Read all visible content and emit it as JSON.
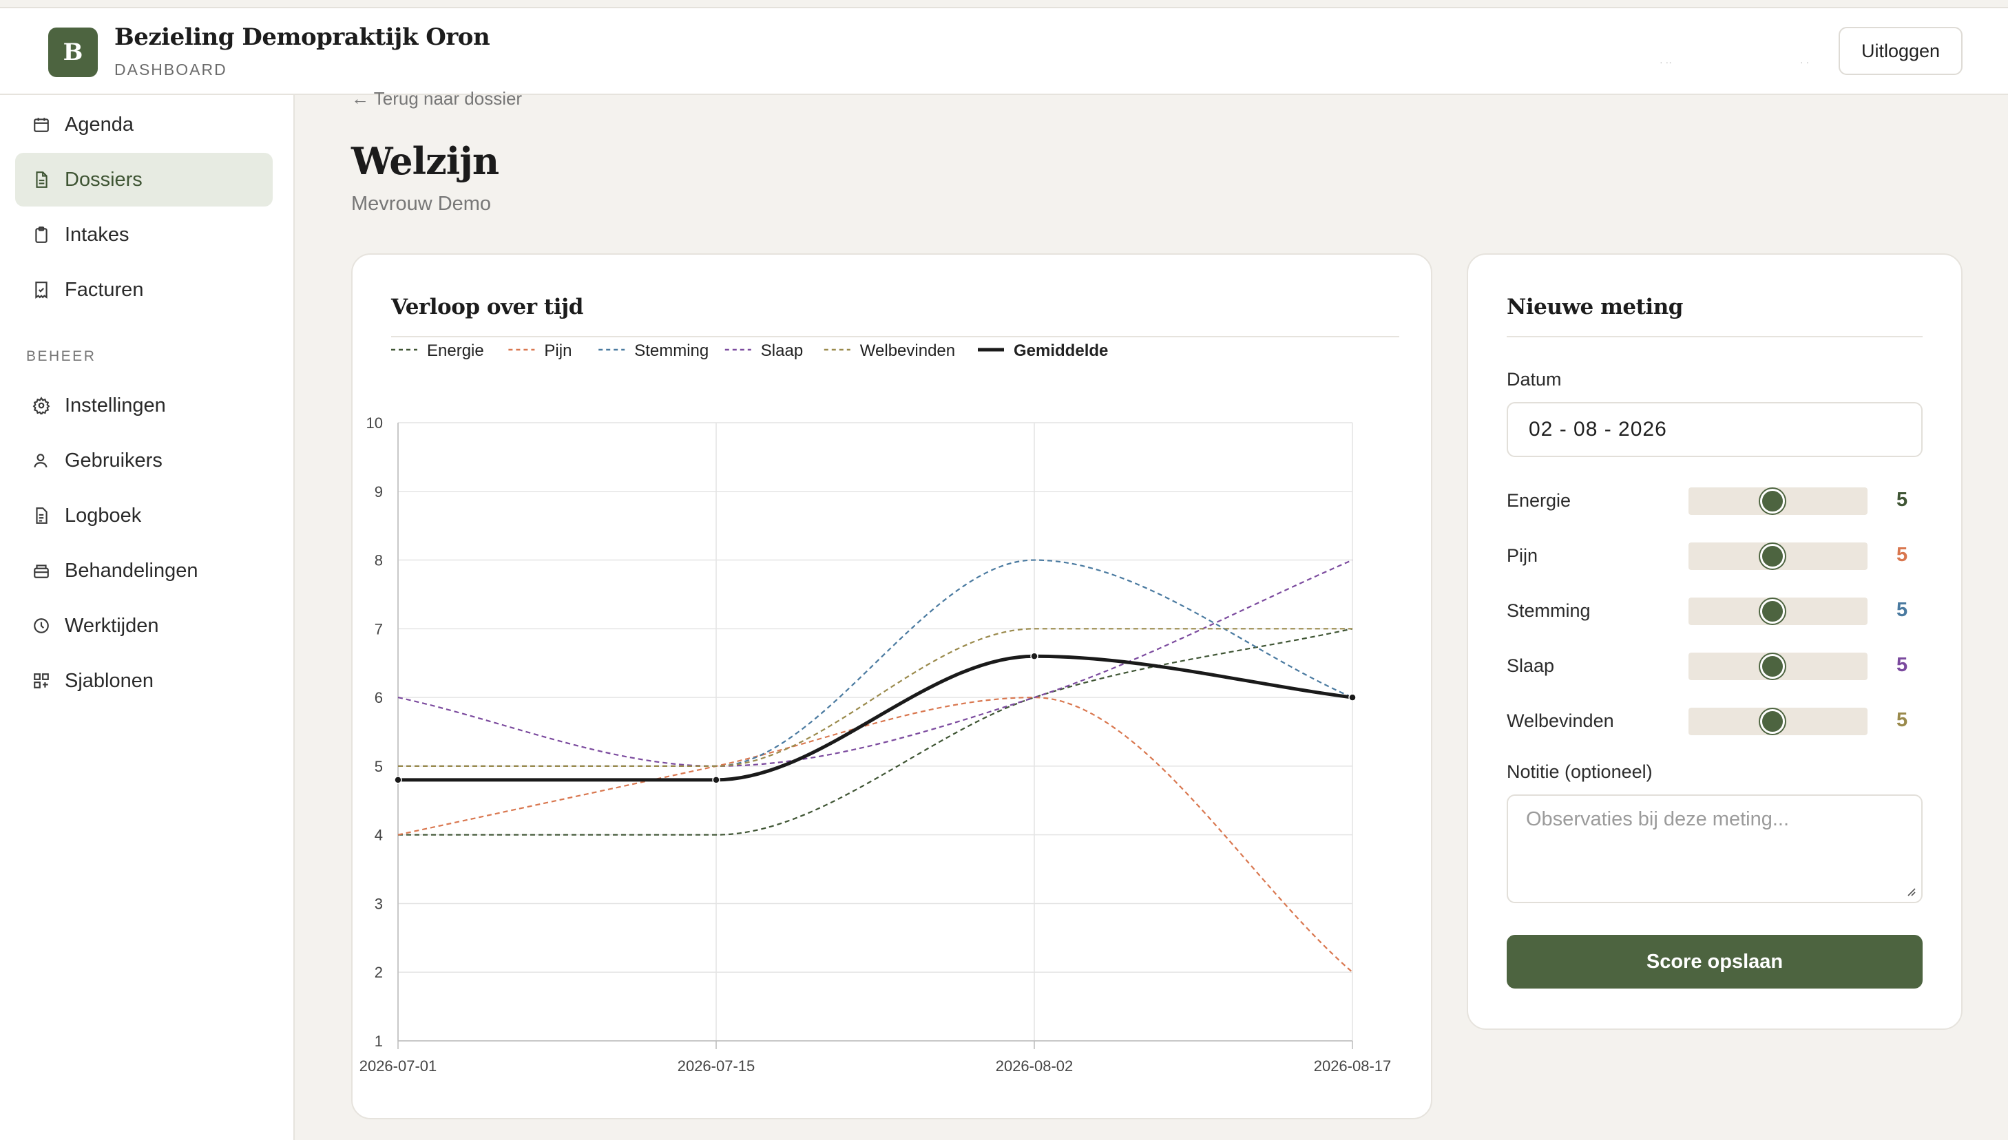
{
  "header": {
    "logo_letter": "B",
    "title": "Bezieling Demopraktijk Oron",
    "subtitle": "DASHBOARD",
    "logout_label": "Uitloggen"
  },
  "sidebar": {
    "items": [
      {
        "label": "Agenda",
        "icon": "calendar-icon"
      },
      {
        "label": "Dossiers",
        "icon": "file-text-icon",
        "active": true
      },
      {
        "label": "Intakes",
        "icon": "clipboard-icon"
      },
      {
        "label": "Facturen",
        "icon": "receipt-icon"
      }
    ],
    "section_label": "BEHEER",
    "admin_items": [
      {
        "label": "Instellingen",
        "icon": "gear-icon"
      },
      {
        "label": "Gebruikers",
        "icon": "user-icon"
      },
      {
        "label": "Logboek",
        "icon": "log-file-icon"
      },
      {
        "label": "Behandelingen",
        "icon": "package-icon"
      },
      {
        "label": "Werktijden",
        "icon": "clock-icon"
      },
      {
        "label": "Sjablonen",
        "icon": "template-grid-icon"
      }
    ]
  },
  "main": {
    "back_link": "← Terug naar dossier",
    "title": "Welzijn",
    "subtitle": "Mevrouw Demo"
  },
  "chart_card": {
    "title": "Verloop over tijd"
  },
  "chart_data": {
    "type": "line",
    "title": "Verloop over tijd",
    "x": [
      "2026-07-01",
      "2026-07-15",
      "2026-08-02",
      "2026-08-17"
    ],
    "ylim": [
      1,
      10
    ],
    "yticks": [
      1,
      2,
      3,
      4,
      5,
      6,
      7,
      8,
      9,
      10
    ],
    "grid": true,
    "legend": "top-left",
    "series": [
      {
        "name": "Energie",
        "values": [
          4,
          4,
          6,
          7
        ],
        "color": "#3f5534",
        "dashed": true
      },
      {
        "name": "Pijn",
        "values": [
          4,
          5,
          6,
          2
        ],
        "color": "#d9774f",
        "dashed": true
      },
      {
        "name": "Stemming",
        "values": [
          5,
          5,
          8,
          6
        ],
        "color": "#4a7aa0",
        "dashed": true
      },
      {
        "name": "Slaap",
        "values": [
          6,
          5,
          6,
          8
        ],
        "color": "#7b4a9e",
        "dashed": true
      },
      {
        "name": "Welbevinden",
        "values": [
          5,
          5,
          7,
          7
        ],
        "color": "#9a8a4c",
        "dashed": true
      },
      {
        "name": "Gemiddelde",
        "values": [
          4.8,
          4.8,
          6.6,
          6
        ],
        "color": "#1a1a1a",
        "dashed": false,
        "bold": true
      }
    ]
  },
  "form": {
    "title": "Nieuwe meting",
    "date_label": "Datum",
    "date_value": "02 - 08 - 2026",
    "sliders": [
      {
        "label": "Energie",
        "value": 5,
        "color": "#3f5534"
      },
      {
        "label": "Pijn",
        "value": 5,
        "color": "#d9774f"
      },
      {
        "label": "Stemming",
        "value": 5,
        "color": "#4a7aa0"
      },
      {
        "label": "Slaap",
        "value": 5,
        "color": "#7b4a9e"
      },
      {
        "label": "Welbevinden",
        "value": 5,
        "color": "#9a8a4c"
      }
    ],
    "slider_min": 1,
    "slider_max": 10,
    "note_label": "Notitie (optioneel)",
    "note_placeholder": "Observaties bij deze meting...",
    "save_label": "Score opslaan"
  }
}
